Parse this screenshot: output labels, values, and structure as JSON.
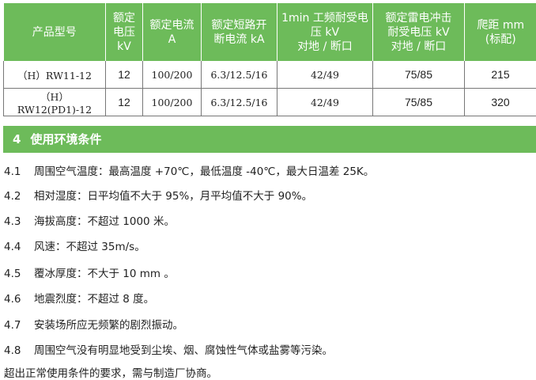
{
  "table": {
    "headers": [
      "产品型号",
      "额定\n电压\nkV",
      "额定电流\nA",
      "额定短路开\n断电流 kA",
      "1min 工频耐受电\n压 kV\n对地 / 断口",
      "额定雷电冲击\n耐受电压 kV\n对地 / 断口",
      "爬距 mm\n(标配)"
    ],
    "rows": [
      [
        "（H）RW11-12",
        "12",
        "100/200",
        "6.3/12.5/16",
        "42/49",
        "75/85",
        "215"
      ],
      [
        "（H）RW12(PD1)-12",
        "12",
        "100/200",
        "6.3/12.5/16",
        "42/49",
        "75/85",
        "320"
      ]
    ]
  },
  "section": {
    "number": "4",
    "title": "使用环境条件"
  },
  "items": [
    {
      "no": "4.1",
      "text": "周围空气温度：最高温度 +70℃，最低温度 -40℃，最大日温差 25K。"
    },
    {
      "no": "4.2",
      "text": "相对湿度：日平均值不大于 95%，月平均值不大于 90%。"
    },
    {
      "no": "4.3",
      "text": "海拔高度：不超过 1000 米。"
    },
    {
      "no": "4.4",
      "text": "风速：不超过 35m/s。"
    },
    {
      "no": "4.5",
      "text": "覆冰厚度：不大于 10 mm 。"
    },
    {
      "no": "4.6",
      "text": "地震烈度：不超过 8 度。"
    },
    {
      "no": "4.7",
      "text": "安装场所应无频繁的剧烈振动。"
    },
    {
      "no": "4.8",
      "text": "周围空气没有明显地受到尘埃、烟、腐蚀性气体或盐雾等污染。"
    }
  ],
  "note": "超出正常使用条件的要求，需与制造厂协商。",
  "colors": {
    "accent": "#6dbb5a"
  }
}
